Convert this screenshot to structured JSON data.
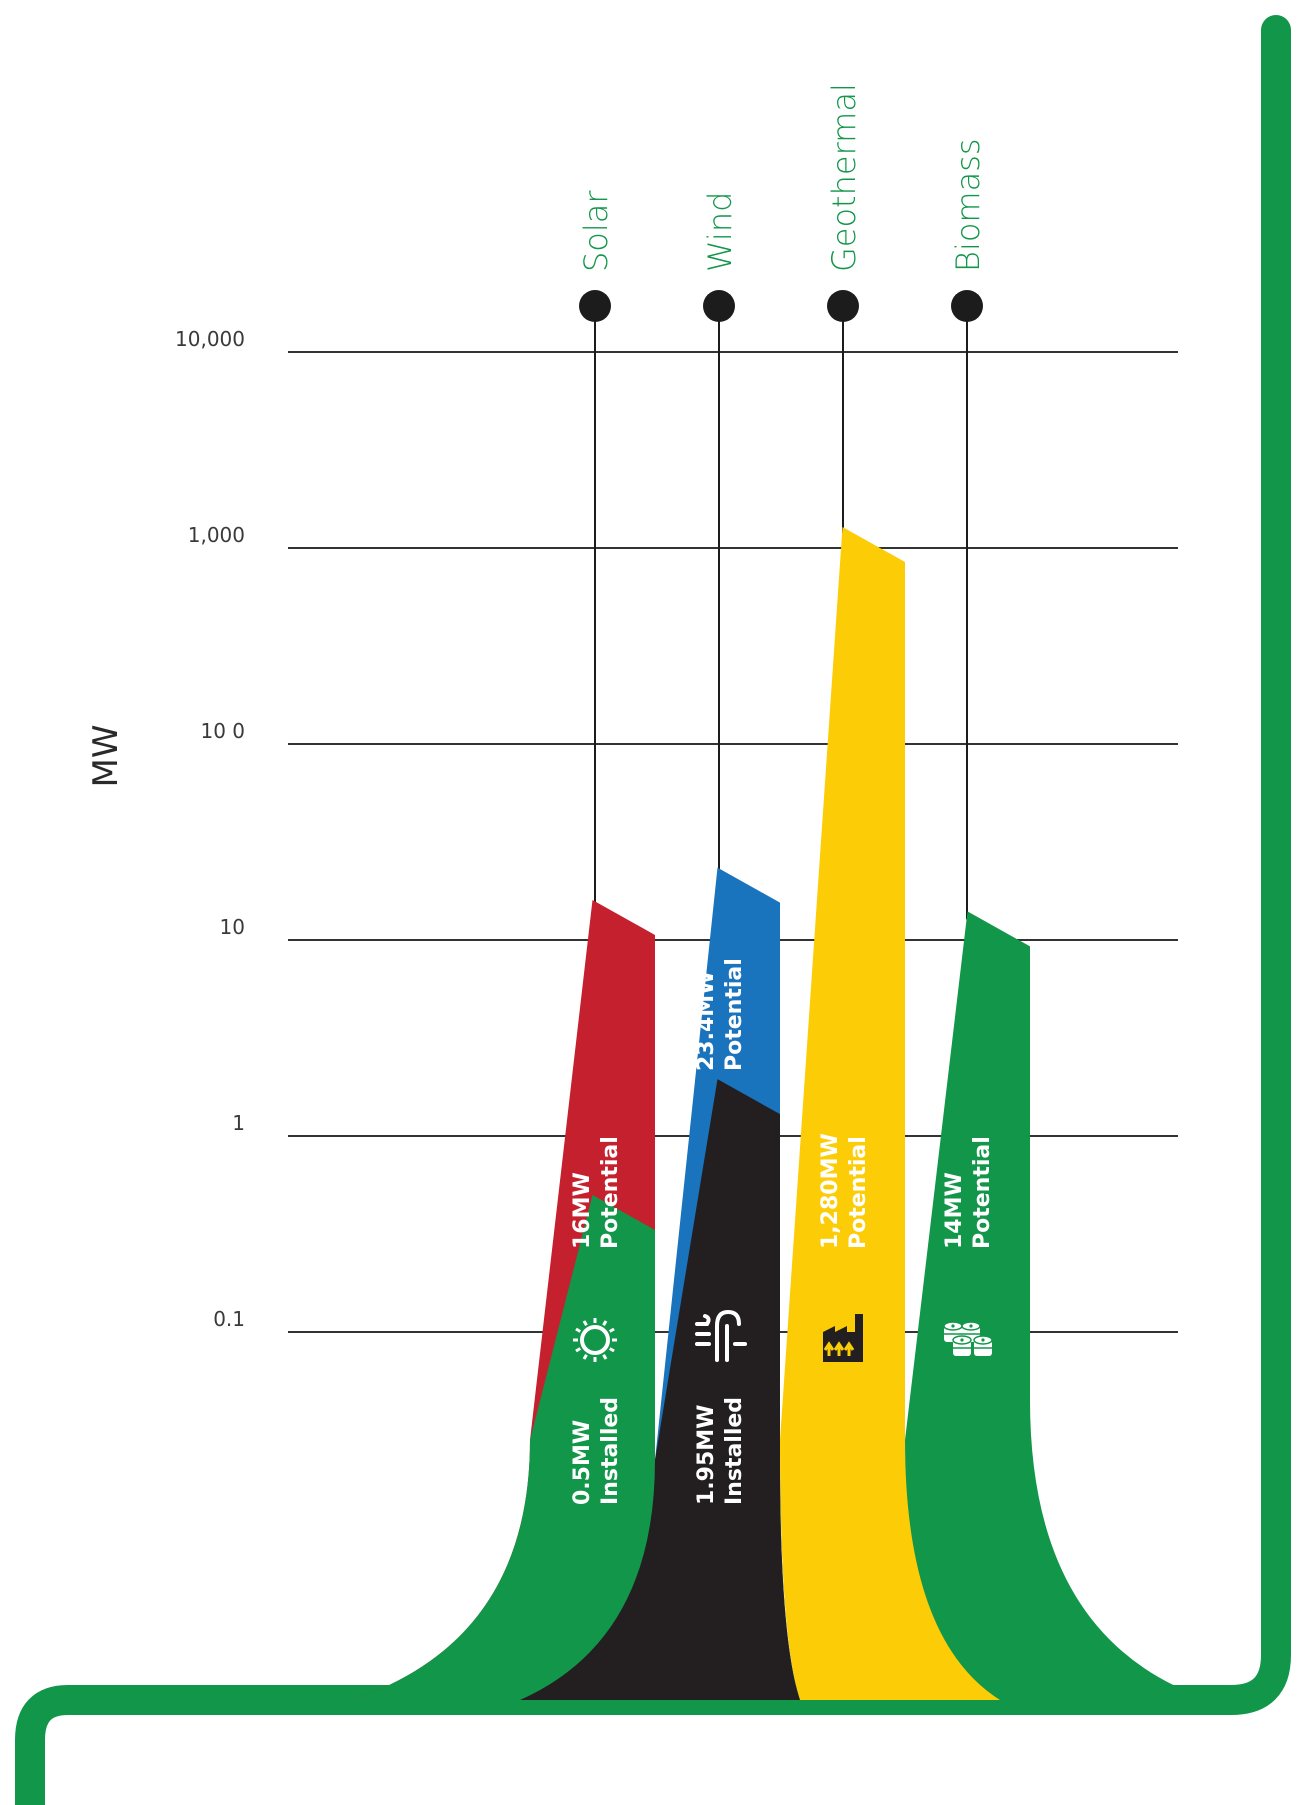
{
  "chart_data": {
    "type": "bar",
    "ylabel": "MW",
    "y_scale": "log",
    "ylim": [
      0.1,
      10000
    ],
    "yticks": [
      "10,000",
      "1,000",
      "10 0",
      "10",
      "1",
      "0.1"
    ],
    "ytick_values": [
      10000,
      1000,
      100,
      10,
      1,
      0.1
    ],
    "categories": [
      "Solar",
      "Wind",
      "Geothermal",
      "Biomass"
    ],
    "series": [
      {
        "name": "Installed",
        "values": [
          0.5,
          1.95,
          null,
          null
        ]
      },
      {
        "name": "Potential",
        "values": [
          16,
          23.4,
          1280,
          14
        ]
      }
    ],
    "bar_labels": {
      "installed": [
        {
          "amount": "0.5MW",
          "kind": "Installed"
        },
        {
          "amount": "1.95MW",
          "kind": "Installed"
        },
        null,
        null
      ],
      "potential": [
        {
          "amount": "16MW",
          "kind": "Potential"
        },
        {
          "amount": "23.4MW",
          "kind": "Potential"
        },
        {
          "amount": "1,280MW",
          "kind": "Potential"
        },
        {
          "amount": "14MW",
          "kind": "Potential"
        }
      ]
    },
    "icons": [
      "sun-icon",
      "wind-turbine-icon",
      "geothermal-plant-icon",
      "barrels-icon"
    ],
    "grid": true,
    "colors": {
      "solar_potential": "#c4202e",
      "solar_installed": "#12964a",
      "wind_potential": "#1a73bd",
      "wind_installed": "#231f20",
      "geothermal_potential": "#fccc07",
      "biomass_potential": "#12964a",
      "frame": "#12964a",
      "category_text": "#12964a",
      "grid": "#333333",
      "marker": "#1c1c1c"
    }
  }
}
